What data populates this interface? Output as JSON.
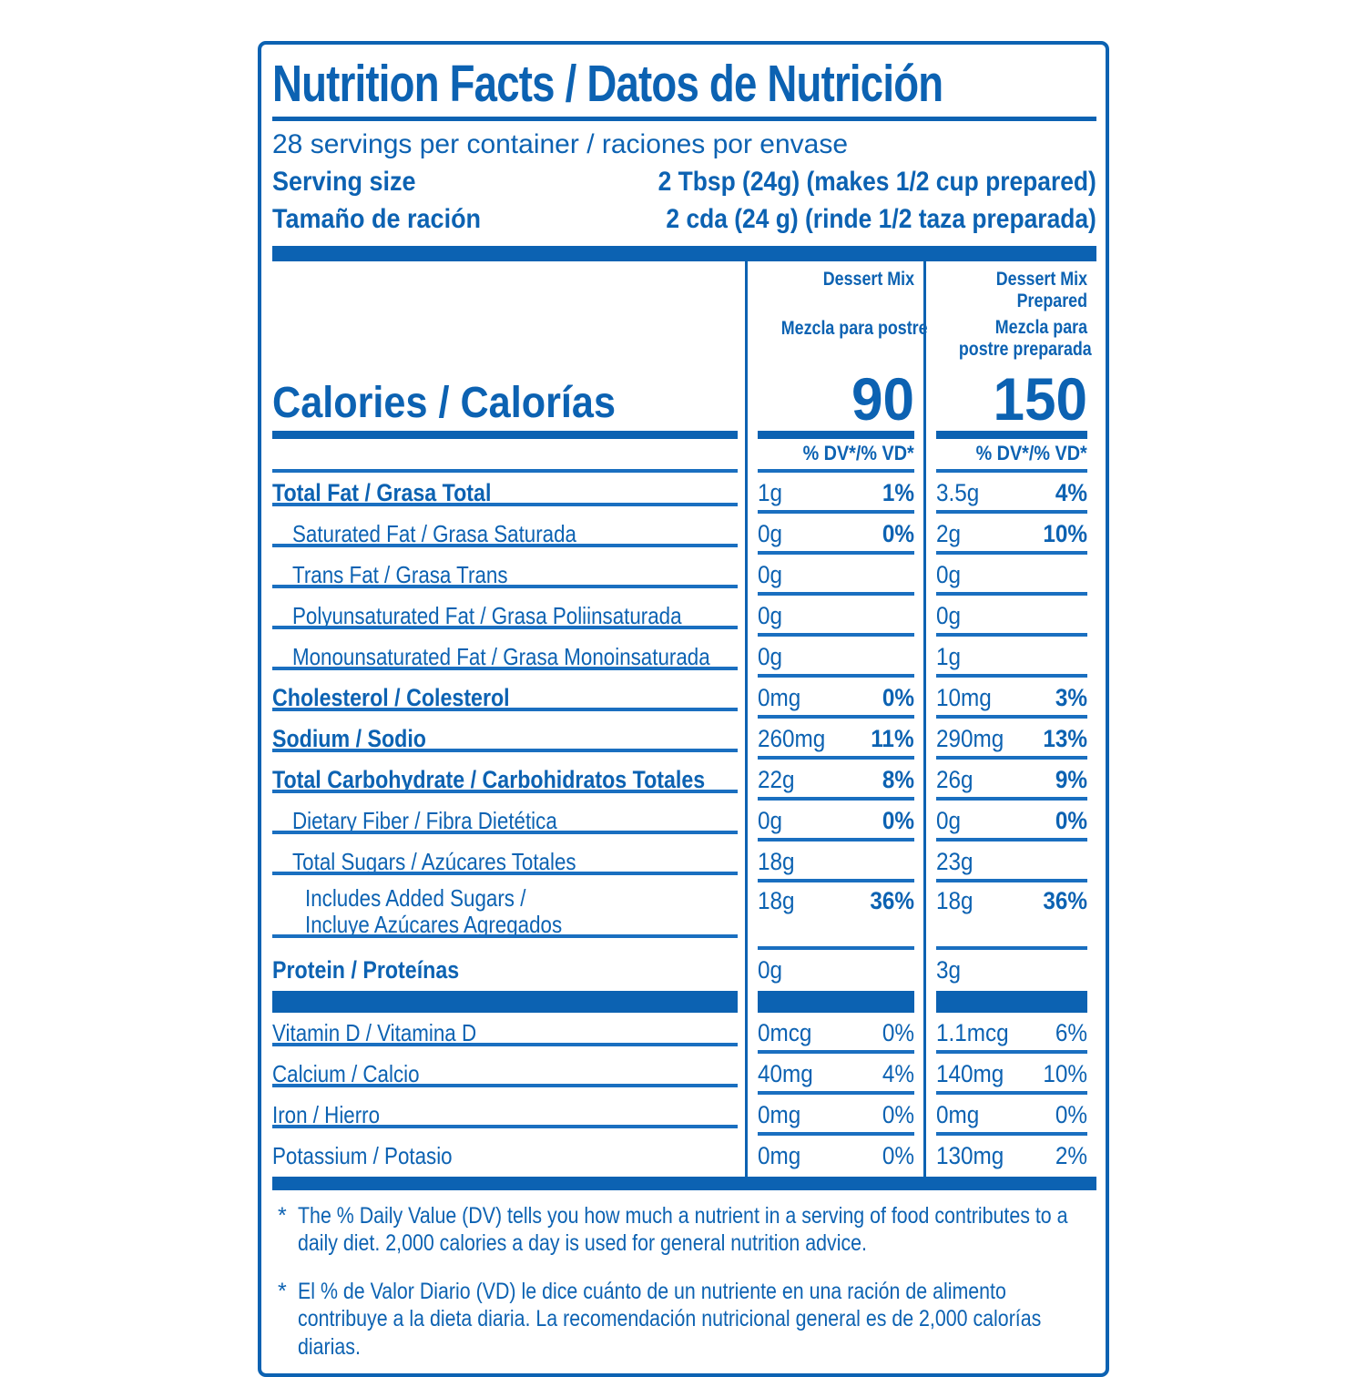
{
  "colors": {
    "blue": "#0c62b2",
    "blue_light": "#1a6fc0",
    "background": "#ffffff"
  },
  "header": {
    "title": "Nutrition Facts / Datos de Nutrición",
    "servings_per_container": "28 servings per container / raciones por envase",
    "serving_size_rows": [
      {
        "label": "Serving size",
        "value": "2 Tbsp (24g) (makes 1/2 cup prepared)"
      },
      {
        "label": "Tamaño de ración",
        "value": "2 cda (24 g) (rinde 1/2 taza preparada)"
      }
    ]
  },
  "calories": {
    "label": "Calories / Calorías",
    "dv_header": "% DV*/% VD*"
  },
  "columns": [
    {
      "name_en": "Dessert Mix",
      "name_es": "Mezcla para postre",
      "name_en_lines": [
        "Dessert Mix"
      ],
      "name_es_lines": [
        "Mezcla para postre"
      ],
      "calories": "90"
    },
    {
      "name_en": "Dessert Mix Prepared",
      "name_es": "Mezcla para postre preparada",
      "name_en_lines": [
        "Dessert Mix",
        "Prepared"
      ],
      "name_es_lines": [
        "Mezcla para",
        "postre preparada"
      ],
      "calories": "150"
    }
  ],
  "nutrients": [
    {
      "label": "Total Fat / Grasa Total",
      "style": "bold",
      "indent": 0,
      "col1": {
        "amount": "1g",
        "dv": "1%"
      },
      "col2": {
        "amount": "3.5g",
        "dv": "4%"
      }
    },
    {
      "label": "Saturated Fat / Grasa Saturada",
      "style": "regular",
      "indent": 1,
      "col1": {
        "amount": "0g",
        "dv": "0%"
      },
      "col2": {
        "amount": "2g",
        "dv": "10%"
      }
    },
    {
      "label": "Trans Fat / Grasa Trans",
      "style": "regular",
      "indent": 1,
      "col1": {
        "amount": "0g",
        "dv": ""
      },
      "col2": {
        "amount": "0g",
        "dv": ""
      }
    },
    {
      "label": "Polyunsaturated Fat / Grasa Poliinsaturada",
      "style": "regular",
      "indent": 1,
      "col1": {
        "amount": "0g",
        "dv": ""
      },
      "col2": {
        "amount": "0g",
        "dv": ""
      }
    },
    {
      "label": "Monounsaturated Fat / Grasa Monoinsaturada",
      "style": "regular",
      "indent": 1,
      "col1": {
        "amount": "0g",
        "dv": ""
      },
      "col2": {
        "amount": "1g",
        "dv": ""
      }
    },
    {
      "label": "Cholesterol / Colesterol",
      "style": "bold",
      "indent": 0,
      "col1": {
        "amount": "0mg",
        "dv": "0%"
      },
      "col2": {
        "amount": "10mg",
        "dv": "3%"
      }
    },
    {
      "label": "Sodium / Sodio",
      "style": "bold",
      "indent": 0,
      "col1": {
        "amount": "260mg",
        "dv": "11%"
      },
      "col2": {
        "amount": "290mg",
        "dv": "13%"
      }
    },
    {
      "label": "Total Carbohydrate / Carbohidratos Totales",
      "style": "bold",
      "indent": 0,
      "col1": {
        "amount": "22g",
        "dv": "8%"
      },
      "col2": {
        "amount": "26g",
        "dv": "9%"
      }
    },
    {
      "label": "Dietary Fiber / Fibra Dietética",
      "style": "regular",
      "indent": 1,
      "col1": {
        "amount": "0g",
        "dv": "0%"
      },
      "col2": {
        "amount": "0g",
        "dv": "0%"
      }
    },
    {
      "label": "Total Sugars / Azúcares Totales",
      "style": "regular",
      "indent": 1,
      "col1": {
        "amount": "18g",
        "dv": ""
      },
      "col2": {
        "amount": "23g",
        "dv": ""
      }
    },
    {
      "label": "Includes Added Sugars /",
      "label2": "Incluye Azúcares Agregados",
      "style": "regular",
      "indent": 2,
      "col1": {
        "amount": "18g",
        "dv": "36%"
      },
      "col2": {
        "amount": "18g",
        "dv": "36%"
      }
    },
    {
      "label": "Protein / Proteínas",
      "style": "bold",
      "indent": 0,
      "col1": {
        "amount": "0g",
        "dv": ""
      },
      "col2": {
        "amount": "3g",
        "dv": ""
      }
    }
  ],
  "vitamins": [
    {
      "label": "Vitamin D / Vitamina D",
      "col1": {
        "amount": "0mcg",
        "dv": "0%"
      },
      "col2": {
        "amount": "1.1mcg",
        "dv": "6%"
      }
    },
    {
      "label": "Calcium / Calcio",
      "col1": {
        "amount": "40mg",
        "dv": "4%"
      },
      "col2": {
        "amount": "140mg",
        "dv": "10%"
      }
    },
    {
      "label": "Iron / Hierro",
      "col1": {
        "amount": "0mg",
        "dv": "0%"
      },
      "col2": {
        "amount": "0mg",
        "dv": "0%"
      }
    },
    {
      "label": "Potassium / Potasio",
      "col1": {
        "amount": "0mg",
        "dv": "0%"
      },
      "col2": {
        "amount": "130mg",
        "dv": "2%"
      }
    }
  ],
  "footnotes": [
    {
      "marker": "*",
      "text": "The % Daily Value (DV) tells you how much a nutrient in a serving of food contributes to a daily diet. 2,000 calories a day is used for general nutrition advice."
    },
    {
      "marker": "*",
      "text": "El % de Valor Diario (VD) le dice cuánto de un nutriente en una ración de alimento contribuye a la dieta diaria. La recomendación nutricional general es de 2,000 calorías diarias."
    }
  ]
}
